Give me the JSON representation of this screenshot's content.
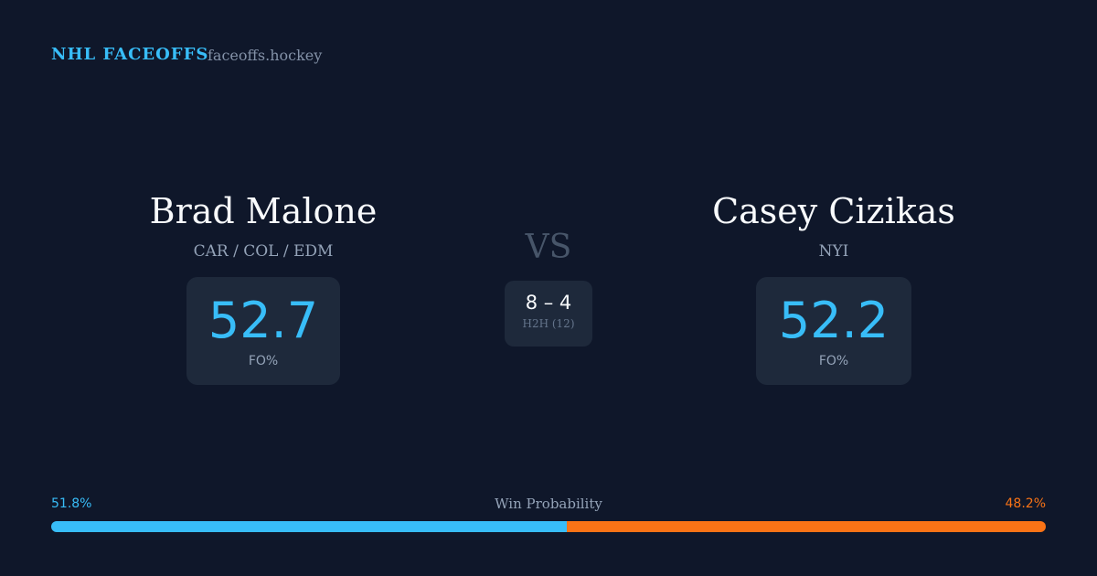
{
  "header": {
    "brand": "NHL FACEOFFS",
    "site": "faceoffs.hockey"
  },
  "players": [
    {
      "name": "Brad Malone",
      "teams": "CAR / COL / EDM",
      "fo_pct": 52.7,
      "fo_label": "FO%"
    },
    {
      "name": "Casey Cizikas",
      "teams": "NYI",
      "fo_pct": 52.2,
      "fo_label": "FO%"
    }
  ],
  "versus": {
    "label": "VS",
    "record": "8 – 4",
    "record_label": "H2H (12)"
  },
  "win_probability": {
    "title": "Win Probability",
    "values": [
      51.8,
      48.2
    ],
    "value_labels": [
      "51.8%",
      "48.2%"
    ],
    "colors": [
      "#38bdf8",
      "#f97316"
    ]
  }
}
